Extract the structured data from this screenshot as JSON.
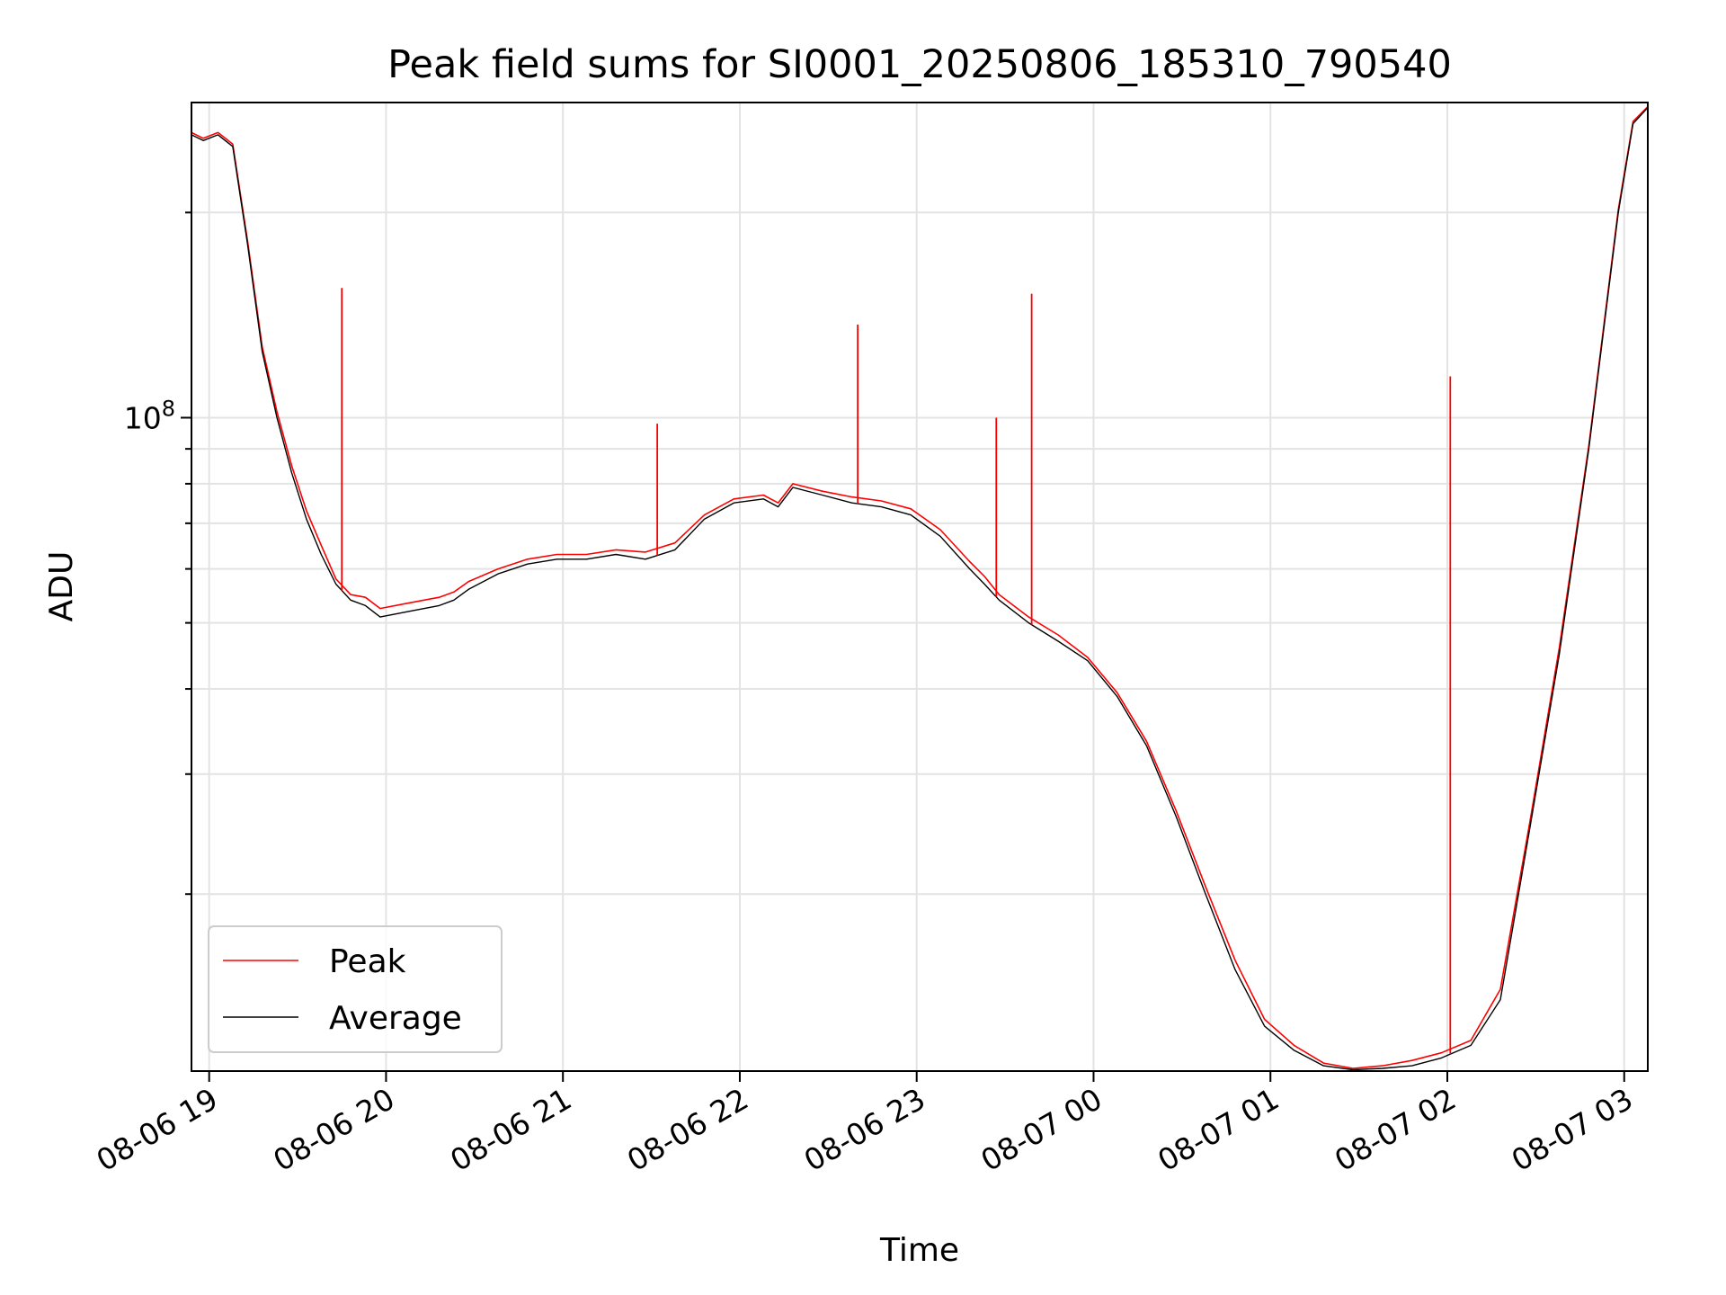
{
  "chart_data": {
    "type": "line",
    "title": "Peak field sums for SI0001_20250806_185310_790540",
    "xlabel": "Time",
    "ylabel": "ADU",
    "y_scale": "log",
    "ylim": [
      11000000,
      290000000
    ],
    "xlim": [
      "2025-08-06 18:54",
      "2025-08-07 03:08"
    ],
    "x_ticks": [
      "2025-08-06 19:00",
      "2025-08-06 20:00",
      "2025-08-06 21:00",
      "2025-08-06 22:00",
      "2025-08-06 23:00",
      "2025-08-07 00:00",
      "2025-08-07 01:00",
      "2025-08-07 02:00",
      "2025-08-07 03:00"
    ],
    "x_tick_labels": [
      "08-06 19",
      "08-06 20",
      "08-06 21",
      "08-06 22",
      "08-06 23",
      "08-07 00",
      "08-07 01",
      "08-07 02",
      "08-07 03"
    ],
    "y_tick_label_base": "10",
    "y_tick_label_exp": "8",
    "grid": true,
    "legend": {
      "position": "lower-left",
      "entries": [
        "Peak",
        "Average"
      ]
    },
    "colors": {
      "Peak": "#ff0000",
      "Average": "#000000"
    },
    "x": [
      "2025-08-06 18:54",
      "2025-08-06 18:58",
      "2025-08-06 19:03",
      "2025-08-06 19:08",
      "2025-08-06 19:13",
      "2025-08-06 19:18",
      "2025-08-06 19:23",
      "2025-08-06 19:28",
      "2025-08-06 19:33",
      "2025-08-06 19:38",
      "2025-08-06 19:43",
      "2025-08-06 19:48",
      "2025-08-06 19:53",
      "2025-08-06 19:58",
      "2025-08-06 20:08",
      "2025-08-06 20:18",
      "2025-08-06 20:23",
      "2025-08-06 20:28",
      "2025-08-06 20:38",
      "2025-08-06 20:48",
      "2025-08-06 20:58",
      "2025-08-06 21:08",
      "2025-08-06 21:18",
      "2025-08-06 21:28",
      "2025-08-06 21:38",
      "2025-08-06 21:48",
      "2025-08-06 21:58",
      "2025-08-06 22:08",
      "2025-08-06 22:13",
      "2025-08-06 22:18",
      "2025-08-06 22:28",
      "2025-08-06 22:38",
      "2025-08-06 22:48",
      "2025-08-06 22:58",
      "2025-08-06 23:08",
      "2025-08-06 23:18",
      "2025-08-06 23:23",
      "2025-08-06 23:28",
      "2025-08-06 23:38",
      "2025-08-06 23:48",
      "2025-08-06 23:58",
      "2025-08-07 00:08",
      "2025-08-07 00:18",
      "2025-08-07 00:28",
      "2025-08-07 00:38",
      "2025-08-07 00:48",
      "2025-08-07 00:58",
      "2025-08-07 01:08",
      "2025-08-07 01:18",
      "2025-08-07 01:28",
      "2025-08-07 01:38",
      "2025-08-07 01:48",
      "2025-08-07 01:58",
      "2025-08-07 02:08",
      "2025-08-07 02:18",
      "2025-08-07 02:28",
      "2025-08-07 02:38",
      "2025-08-07 02:48",
      "2025-08-07 02:58",
      "2025-08-07 03:03",
      "2025-08-07 03:08"
    ],
    "series": [
      {
        "name": "Average",
        "values": [
          260000000,
          255000000,
          260000000,
          250000000,
          180000000,
          125000000,
          100000000,
          83000000,
          71000000,
          63000000,
          57000000,
          54000000,
          53000000,
          51000000,
          52000000,
          53000000,
          54000000,
          56000000,
          59000000,
          61000000,
          62000000,
          62000000,
          63000000,
          62000000,
          64000000,
          71000000,
          75000000,
          76000000,
          74000000,
          79000000,
          77000000,
          75000000,
          74000000,
          72000000,
          67000000,
          60000000,
          57000000,
          54000000,
          50000000,
          47000000,
          44000000,
          39000000,
          33000000,
          26000000,
          20000000,
          15500000,
          12800000,
          11800000,
          11200000,
          11050000,
          11100000,
          11200000,
          11500000,
          12000000,
          14000000,
          25000000,
          45000000,
          90000000,
          200000000,
          270000000,
          285000000
        ]
      },
      {
        "name": "Peak",
        "values": [
          262000000,
          257000000,
          262000000,
          252000000,
          182000000,
          127000000,
          102000000,
          85000000,
          73000000,
          65000000,
          58000000,
          55000000,
          54500000,
          52500000,
          53500000,
          54500000,
          55500000,
          57500000,
          60000000,
          62000000,
          63000000,
          63000000,
          64000000,
          63500000,
          65500000,
          72000000,
          76000000,
          77000000,
          75000000,
          80000000,
          78000000,
          76500000,
          75500000,
          73500000,
          68500000,
          61500000,
          58500000,
          55000000,
          51000000,
          48000000,
          44500000,
          39500000,
          33500000,
          26500000,
          20500000,
          16000000,
          13100000,
          12000000,
          11300000,
          11100000,
          11200000,
          11400000,
          11700000,
          12200000,
          14500000,
          25500000,
          46000000,
          91000000,
          202000000,
          272000000,
          286000000
        ],
        "spikes": [
          {
            "x": "2025-08-06 19:45",
            "value": 155000000
          },
          {
            "x": "2025-08-06 21:32",
            "value": 98000000
          },
          {
            "x": "2025-08-06 22:40",
            "value": 137000000
          },
          {
            "x": "2025-08-06 23:27",
            "value": 100000000
          },
          {
            "x": "2025-08-06 23:39",
            "value": 152000000
          },
          {
            "x": "2025-08-07 02:01",
            "value": 115000000
          }
        ]
      }
    ]
  }
}
